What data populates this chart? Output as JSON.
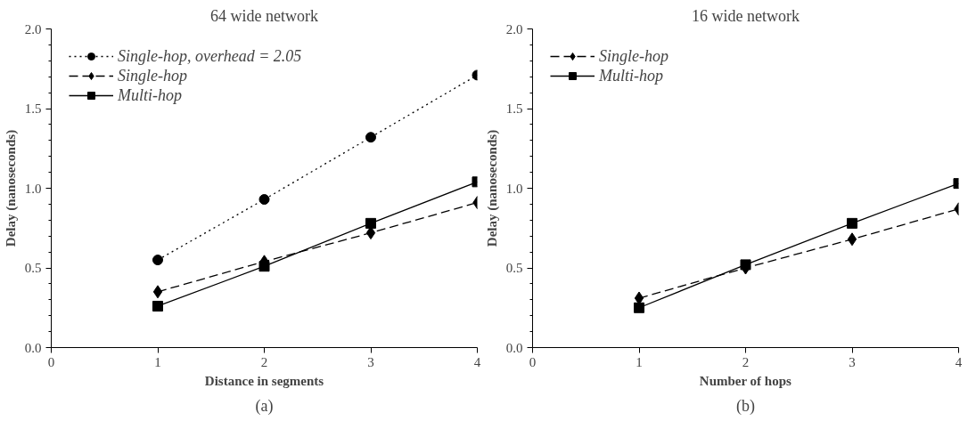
{
  "chart_data": [
    {
      "type": "line",
      "title": "64 wide network",
      "xlabel": "Distance in segments",
      "ylabel": "Delay (nanoseconds)",
      "annotations": [
        "(a)"
      ],
      "x": [
        1,
        2,
        3,
        4
      ],
      "xlim": [
        0,
        4
      ],
      "xticks": [
        0,
        1,
        2,
        3,
        4
      ],
      "ylim": [
        0,
        2.0
      ],
      "yticks": [
        {
          "value": 0,
          "label": "0.0"
        },
        {
          "value": 0.5,
          "label": "0.5"
        },
        {
          "value": 1,
          "label": "1.0"
        },
        {
          "value": 1.5,
          "label": "1.5"
        },
        {
          "value": 2,
          "label": "2.0"
        }
      ],
      "grid": false,
      "legend": "top left",
      "series": [
        {
          "name": "Single-hop, overhead = 2.05",
          "color": "#000000",
          "marker": "circle",
          "line_style": "dotted",
          "values": [
            0.55,
            0.93,
            1.32,
            1.71
          ]
        },
        {
          "name": "Single-hop",
          "color": "#000000",
          "marker": "diamond",
          "line_style": "dashed",
          "values": [
            0.35,
            0.54,
            0.72,
            0.91
          ]
        },
        {
          "name": "Multi-hop",
          "color": "#000000",
          "marker": "square",
          "line_style": "solid",
          "values": [
            0.26,
            0.51,
            0.78,
            1.04
          ]
        }
      ]
    },
    {
      "type": "line",
      "title": "16 wide network",
      "xlabel": "Number of hops",
      "ylabel": "Delay (nanoseconds)",
      "annotations": [
        "(b)"
      ],
      "x": [
        1,
        2,
        3,
        4
      ],
      "xlim": [
        0,
        4
      ],
      "xticks": [
        0,
        1,
        2,
        3,
        4
      ],
      "ylim": [
        0,
        2.0
      ],
      "yticks": [
        {
          "value": 0,
          "label": "0.0"
        },
        {
          "value": 0.5,
          "label": "0.5"
        },
        {
          "value": 1,
          "label": "1.0"
        },
        {
          "value": 1.5,
          "label": "1.5"
        },
        {
          "value": 2,
          "label": "2.0"
        }
      ],
      "grid": false,
      "legend": "top left",
      "series": [
        {
          "name": "Single-hop",
          "color": "#000000",
          "marker": "diamond",
          "line_style": "dashed",
          "values": [
            0.31,
            0.5,
            0.68,
            0.87
          ]
        },
        {
          "name": "Multi-hop",
          "color": "#000000",
          "marker": "square",
          "line_style": "solid",
          "values": [
            0.25,
            0.52,
            0.78,
            1.03
          ]
        }
      ]
    }
  ]
}
